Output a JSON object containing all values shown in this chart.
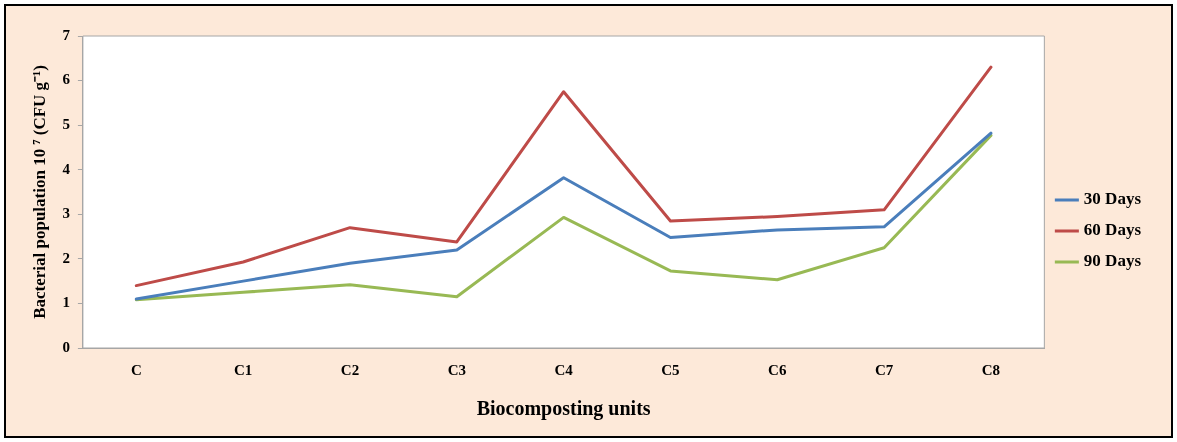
{
  "chart_data": {
    "type": "line",
    "xlabel": "Biocomposting units",
    "ylabel": "Bacterial population 10 ⁷ (CFU g⁻¹)",
    "categories": [
      "C",
      "C1",
      "C2",
      "C3",
      "C4",
      "C5",
      "C6",
      "C7",
      "C8"
    ],
    "series": [
      {
        "name": "30 Days",
        "color": "#4a7ebb",
        "values": [
          1.1,
          1.5,
          1.9,
          2.2,
          3.82,
          2.48,
          2.65,
          2.72,
          4.82
        ]
      },
      {
        "name": "60 Days",
        "color": "#be4b48",
        "values": [
          1.4,
          1.93,
          2.7,
          2.38,
          5.75,
          2.85,
          2.95,
          3.1,
          6.3
        ]
      },
      {
        "name": "90 Days",
        "color": "#98b954",
        "values": [
          1.08,
          1.25,
          1.42,
          1.15,
          2.93,
          1.73,
          1.53,
          2.25,
          4.77
        ]
      }
    ],
    "ylim": [
      0,
      7
    ],
    "yticks": [
      0,
      1,
      2,
      3,
      4,
      5,
      6,
      7
    ],
    "grid": false,
    "legend": "right",
    "marker": "none",
    "line_style": "solid"
  }
}
